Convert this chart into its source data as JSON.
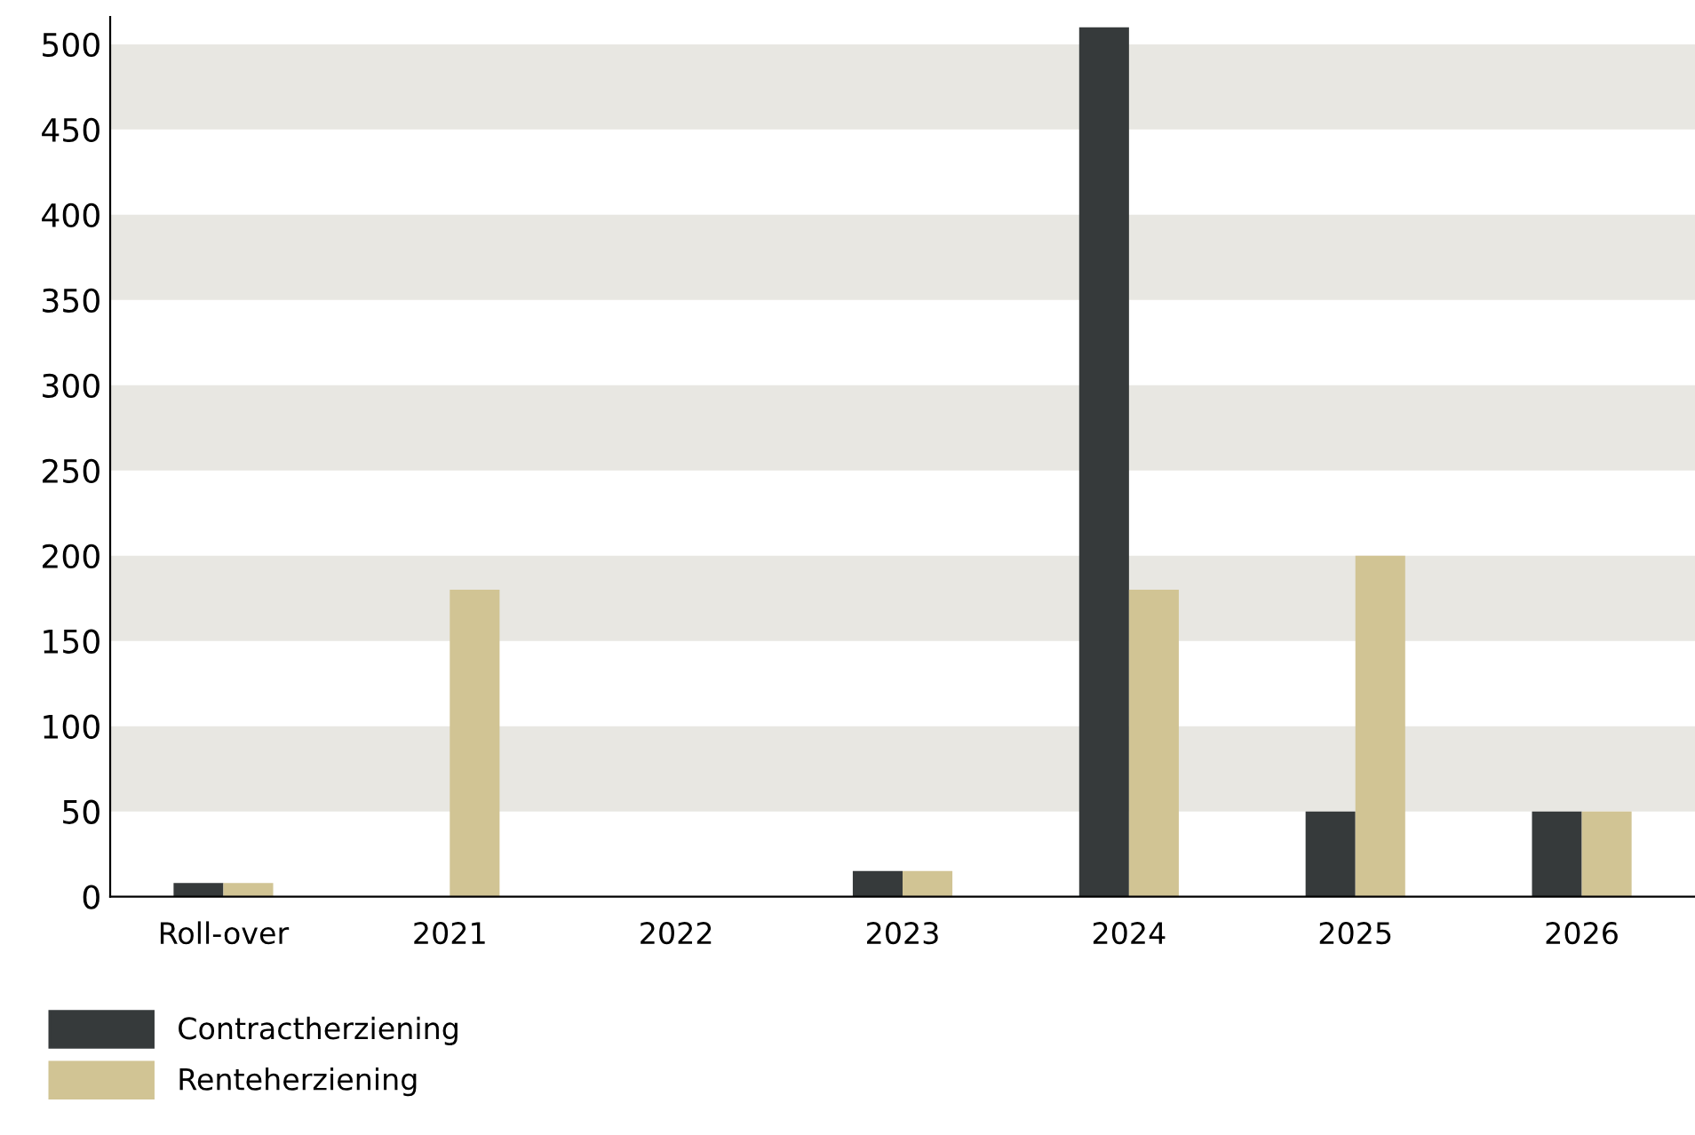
{
  "chart_data": {
    "type": "bar",
    "categories": [
      "Roll-over",
      "2021",
      "2022",
      "2023",
      "2024",
      "2025",
      "2026"
    ],
    "series": [
      {
        "name": "Contractherziening",
        "color": "#363a3b",
        "values": [
          8,
          0,
          0,
          15,
          510,
          50,
          50
        ]
      },
      {
        "name": "Renteherziening",
        "color": "#d1c494",
        "values": [
          8,
          180,
          0,
          15,
          180,
          200,
          50
        ]
      }
    ],
    "ylim": [
      0,
      516
    ],
    "yticks": [
      0,
      50,
      100,
      150,
      200,
      250,
      300,
      350,
      400,
      450,
      500
    ],
    "grid": false,
    "legend": "bottom left",
    "bands": [
      {
        "axis": "y",
        "from": 50,
        "to": 100,
        "color": "#e8e7e2"
      },
      {
        "axis": "y",
        "from": 150,
        "to": 200,
        "color": "#e8e7e2"
      },
      {
        "axis": "y",
        "from": 250,
        "to": 300,
        "color": "#e8e7e2"
      },
      {
        "axis": "y",
        "from": 350,
        "to": 400,
        "color": "#e8e7e2"
      },
      {
        "axis": "y",
        "from": 450,
        "to": 500,
        "color": "#e8e7e2"
      }
    ]
  }
}
